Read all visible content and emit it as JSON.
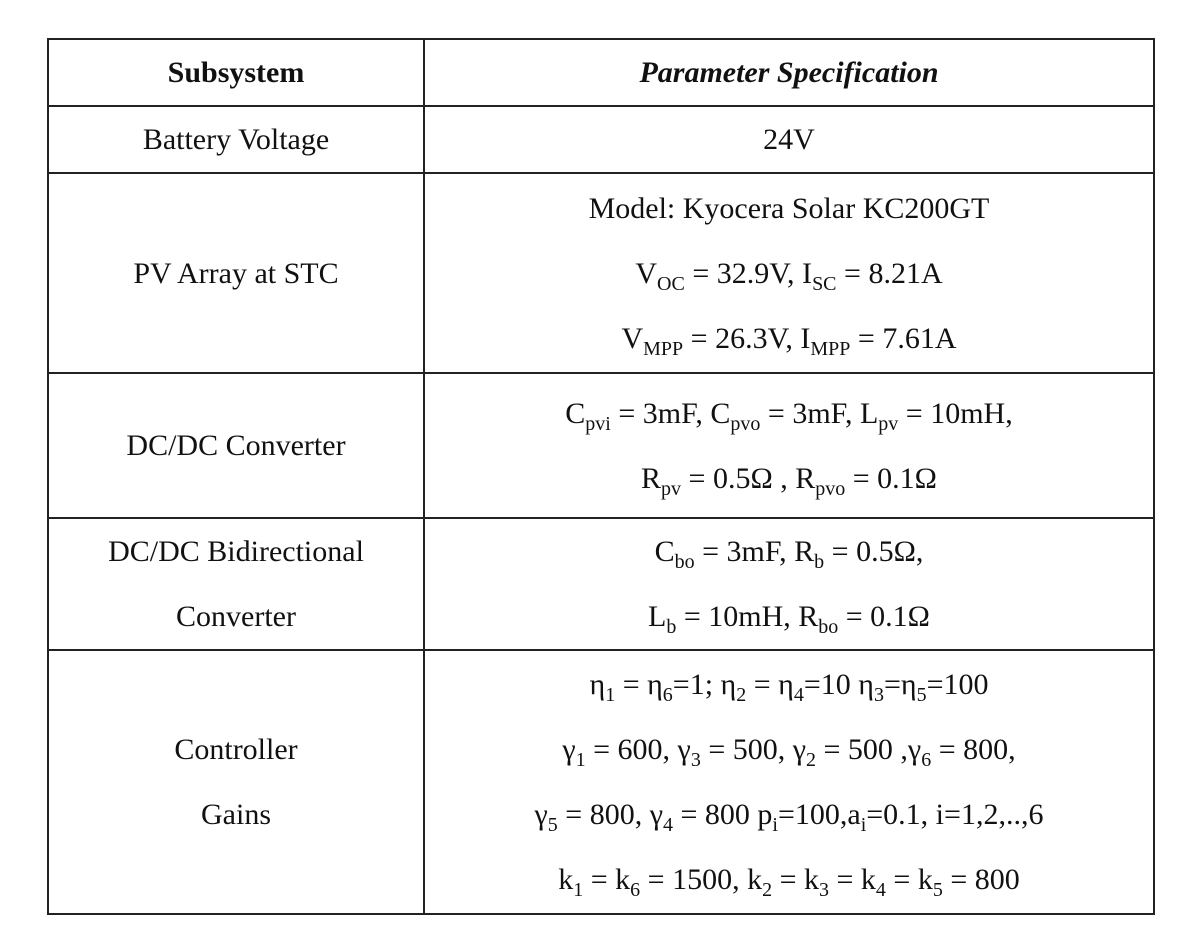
{
  "table": {
    "header": [
      "Subsystem",
      "Parameter Specification"
    ],
    "rows": [
      {
        "subsystem": [
          "Battery Voltage"
        ],
        "spec": [
          [
            "24V"
          ]
        ]
      },
      {
        "subsystem": [
          "PV Array at STC"
        ],
        "spec": [
          [
            "Model: Kyocera Solar KC200GT"
          ],
          [
            "V",
            {
              "sub": "OC"
            },
            " = 32.9V, I",
            {
              "sub": "SC"
            },
            " = 8.21A"
          ],
          [
            "V",
            {
              "sub": "MPP"
            },
            " = 26.3V, I",
            {
              "sub": "MPP"
            },
            " = 7.61A"
          ]
        ]
      },
      {
        "subsystem": [
          "DC/DC Converter"
        ],
        "spec": [
          [
            "C",
            {
              "sub": "pvi"
            },
            " = 3mF, C",
            {
              "sub": "pvo"
            },
            " = 3mF, L",
            {
              "sub": "pv"
            },
            " = 10mH,"
          ],
          [
            "R",
            {
              "sub": "pv"
            },
            " = 0.5Ω , R",
            {
              "sub": "pvo"
            },
            " = 0.1Ω"
          ]
        ]
      },
      {
        "subsystem": [
          "DC/DC Bidirectional",
          "Converter"
        ],
        "spec": [
          [
            "C",
            {
              "sub": "bo"
            },
            " = 3mF, R",
            {
              "sub": "b"
            },
            " = 0.5Ω,"
          ],
          [
            "L",
            {
              "sub": "b"
            },
            " = 10mH, R",
            {
              "sub": "bo"
            },
            " = 0.1Ω"
          ]
        ]
      },
      {
        "subsystem": [
          "Controller",
          "Gains"
        ],
        "spec": [
          [
            "η",
            {
              "sub": "1"
            },
            " = η",
            {
              "sub": "6"
            },
            "=1; η",
            {
              "sub": "2"
            },
            " = η",
            {
              "sub": "4"
            },
            "=10 η",
            {
              "sub": "3"
            },
            "=η",
            {
              "sub": "5"
            },
            "=100"
          ],
          [
            "γ",
            {
              "sub": "1"
            },
            " = 600, γ",
            {
              "sub": "3"
            },
            " = 500, γ",
            {
              "sub": "2"
            },
            " = 500 ,γ",
            {
              "sub": "6"
            },
            " = 800,"
          ],
          [
            "γ",
            {
              "sub": "5"
            },
            " = 800, γ",
            {
              "sub": "4"
            },
            " = 800 p",
            {
              "sub": "i"
            },
            "=100,a",
            {
              "sub": "i"
            },
            "=0.1, i=1,2,..,6"
          ],
          [
            "k",
            {
              "sub": "1"
            },
            " = k",
            {
              "sub": "6"
            },
            " = 1500, k",
            {
              "sub": "2"
            },
            " = k",
            {
              "sub": "3"
            },
            " = k",
            {
              "sub": "4"
            },
            " = k",
            {
              "sub": "5"
            },
            " = 800"
          ]
        ]
      }
    ]
  }
}
